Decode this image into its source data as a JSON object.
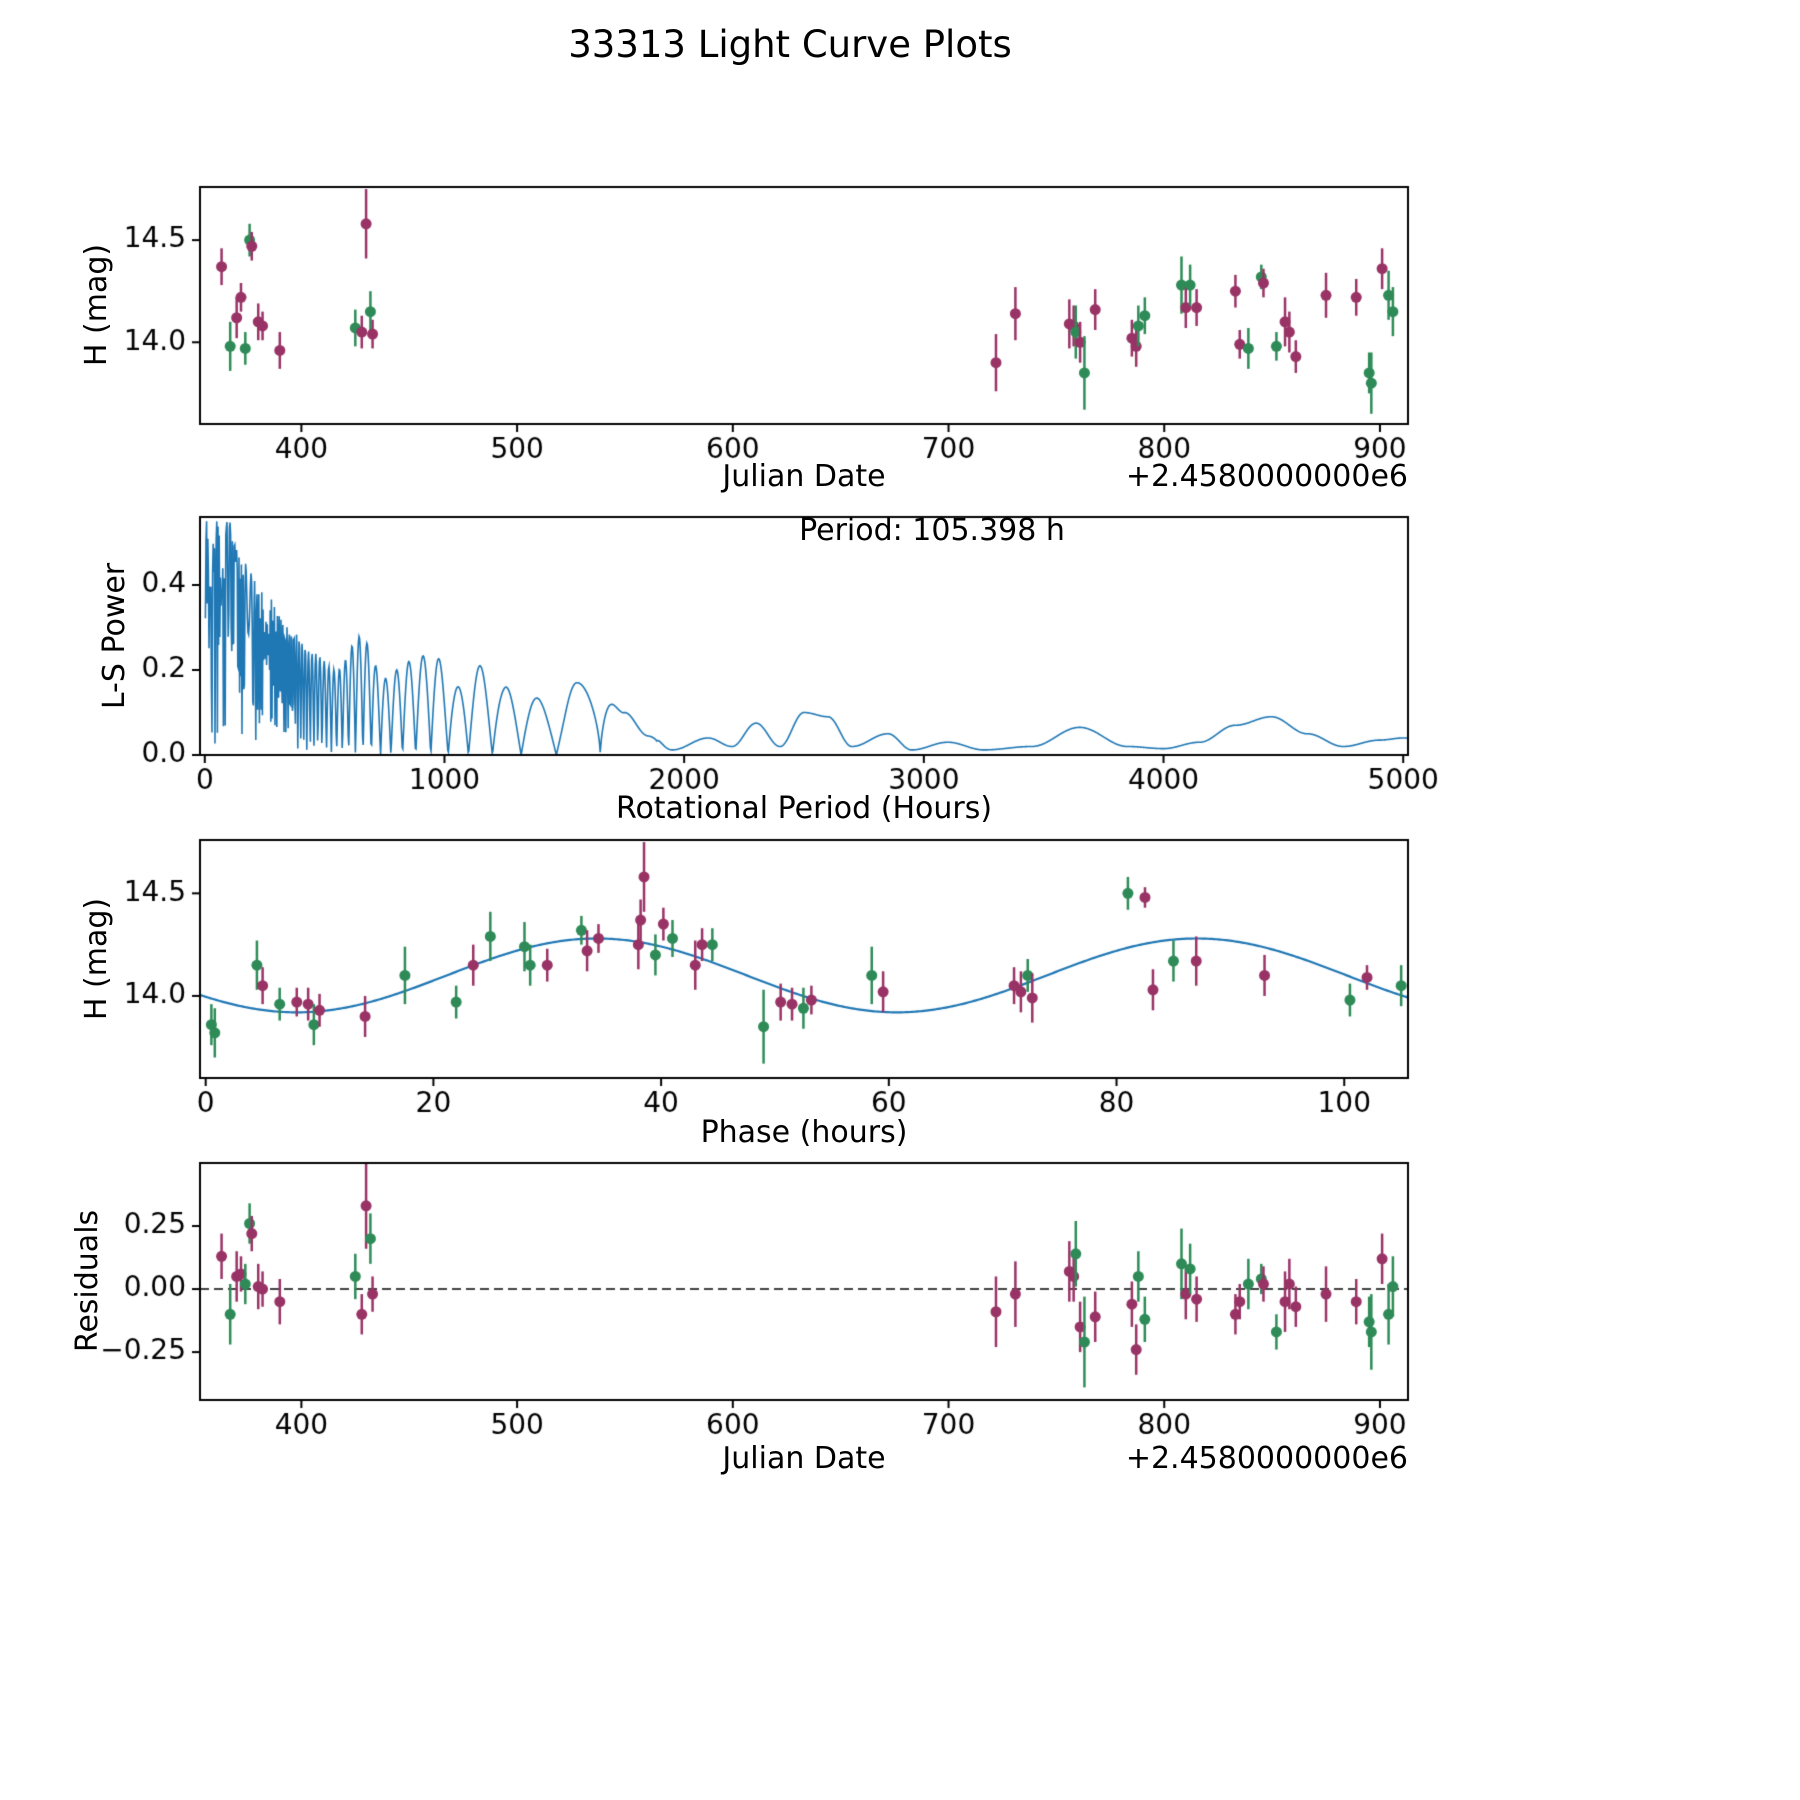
{
  "title": "33313 Light Curve Plots",
  "colors": {
    "p": "#993366",
    "g": "#2e8b57",
    "line": "#1f77b4",
    "axis": "#000000"
  },
  "chart_data": [
    {
      "type": "scatter",
      "xlabel": "Julian Date",
      "ylabel": "H (mag)",
      "x_offset_label": "+2.4580000000e6",
      "xlim": [
        353,
        913
      ],
      "ylim": [
        13.6,
        14.76
      ],
      "xticks": [
        400,
        500,
        600,
        700,
        800,
        900
      ],
      "xticklabels": [
        "400",
        "500",
        "600",
        "700",
        "800",
        "900"
      ],
      "yticks": [
        14.0,
        14.5
      ],
      "yticklabels": [
        "14.0",
        "14.5"
      ],
      "points": [
        [
          363,
          14.37,
          0.09,
          "p"
        ],
        [
          367,
          13.98,
          0.12,
          "g"
        ],
        [
          370,
          14.12,
          0.1,
          "p"
        ],
        [
          372,
          14.22,
          0.07,
          "p"
        ],
        [
          374,
          13.97,
          0.08,
          "g"
        ],
        [
          376,
          14.5,
          0.08,
          "g"
        ],
        [
          377,
          14.47,
          0.07,
          "p"
        ],
        [
          380,
          14.1,
          0.09,
          "p"
        ],
        [
          382,
          14.08,
          0.07,
          "p"
        ],
        [
          390,
          13.96,
          0.09,
          "p"
        ],
        [
          425,
          14.07,
          0.09,
          "g"
        ],
        [
          428,
          14.05,
          0.08,
          "p"
        ],
        [
          430,
          14.58,
          0.17,
          "p"
        ],
        [
          432,
          14.15,
          0.1,
          "g"
        ],
        [
          433,
          14.04,
          0.07,
          "p"
        ],
        [
          722,
          13.9,
          0.14,
          "p"
        ],
        [
          731,
          14.14,
          0.13,
          "p"
        ],
        [
          756,
          14.09,
          0.12,
          "p"
        ],
        [
          758,
          14.08,
          0.1,
          "p"
        ],
        [
          759,
          14.05,
          0.13,
          "g"
        ],
        [
          761,
          14.0,
          0.1,
          "p"
        ],
        [
          763,
          13.85,
          0.18,
          "g"
        ],
        [
          768,
          14.16,
          0.1,
          "p"
        ],
        [
          785,
          14.02,
          0.09,
          "p"
        ],
        [
          787,
          13.98,
          0.1,
          "p"
        ],
        [
          788,
          14.08,
          0.1,
          "g"
        ],
        [
          791,
          14.13,
          0.09,
          "g"
        ],
        [
          808,
          14.28,
          0.14,
          "g"
        ],
        [
          810,
          14.17,
          0.1,
          "p"
        ],
        [
          812,
          14.28,
          0.1,
          "g"
        ],
        [
          815,
          14.17,
          0.09,
          "p"
        ],
        [
          833,
          14.25,
          0.08,
          "p"
        ],
        [
          835,
          13.99,
          0.07,
          "p"
        ],
        [
          839,
          13.97,
          0.1,
          "g"
        ],
        [
          845,
          14.32,
          0.06,
          "g"
        ],
        [
          846,
          14.29,
          0.07,
          "p"
        ],
        [
          852,
          13.98,
          0.07,
          "g"
        ],
        [
          856,
          14.1,
          0.12,
          "p"
        ],
        [
          858,
          14.05,
          0.1,
          "p"
        ],
        [
          861,
          13.93,
          0.08,
          "p"
        ],
        [
          875,
          14.23,
          0.11,
          "p"
        ],
        [
          889,
          14.22,
          0.09,
          "p"
        ],
        [
          895,
          13.85,
          0.1,
          "g"
        ],
        [
          896,
          13.8,
          0.15,
          "g"
        ],
        [
          901,
          14.36,
          0.1,
          "p"
        ],
        [
          904,
          14.23,
          0.12,
          "g"
        ],
        [
          906,
          14.15,
          0.12,
          "g"
        ]
      ]
    },
    {
      "type": "line",
      "xlabel": "Rotational Period (Hours)",
      "ylabel": "L-S Power",
      "annotation": "Period: 105.398 h",
      "xlim": [
        -20,
        5020
      ],
      "ylim": [
        0,
        0.56
      ],
      "xticks": [
        0,
        1000,
        2000,
        3000,
        4000,
        5000
      ],
      "xticklabels": [
        "0",
        "1000",
        "2000",
        "3000",
        "4000",
        "5000"
      ],
      "yticks": [
        0.0,
        0.2,
        0.4
      ],
      "yticklabels": [
        "0.0",
        "0.2",
        "0.4"
      ],
      "periodogram": {
        "baseline_hours": 13200,
        "blend_start": 1500,
        "blend_end": 1900,
        "max_power": 0.55,
        "envelope": [
          [
            0,
            0.55
          ],
          [
            100,
            0.55
          ],
          [
            150,
            0.46
          ],
          [
            250,
            0.38
          ],
          [
            350,
            0.3
          ],
          [
            450,
            0.24
          ],
          [
            550,
            0.2
          ],
          [
            650,
            0.28
          ],
          [
            750,
            0.18
          ],
          [
            850,
            0.22
          ],
          [
            950,
            0.24
          ],
          [
            1050,
            0.16
          ],
          [
            1150,
            0.21
          ],
          [
            1250,
            0.16
          ],
          [
            1350,
            0.14
          ],
          [
            1450,
            0.12
          ],
          [
            1550,
            0.17
          ],
          [
            1650,
            0.19
          ],
          [
            1750,
            0.1
          ],
          [
            1850,
            0.05
          ],
          [
            1950,
            0.012
          ],
          [
            2100,
            0.04
          ],
          [
            2200,
            0.02
          ],
          [
            2300,
            0.075
          ],
          [
            2400,
            0.02
          ],
          [
            2500,
            0.1
          ],
          [
            2600,
            0.09
          ],
          [
            2700,
            0.02
          ],
          [
            2850,
            0.05
          ],
          [
            2950,
            0.012
          ],
          [
            3100,
            0.03
          ],
          [
            3250,
            0.012
          ],
          [
            3450,
            0.02
          ],
          [
            3650,
            0.065
          ],
          [
            3850,
            0.02
          ],
          [
            4000,
            0.015
          ],
          [
            4150,
            0.03
          ],
          [
            4300,
            0.07
          ],
          [
            4450,
            0.09
          ],
          [
            4600,
            0.05
          ],
          [
            4750,
            0.02
          ],
          [
            4900,
            0.035
          ],
          [
            5000,
            0.04
          ]
        ]
      }
    },
    {
      "type": "scatter+line",
      "xlabel": "Phase (hours)",
      "ylabel": "H (mag)",
      "xlim": [
        -0.5,
        105.6
      ],
      "ylim": [
        13.6,
        14.76
      ],
      "xticks": [
        0,
        20,
        40,
        60,
        80,
        100
      ],
      "xticklabels": [
        "0",
        "20",
        "40",
        "60",
        "80",
        "100"
      ],
      "yticks": [
        14.0,
        14.5
      ],
      "yticklabels": [
        "14.0",
        "14.5"
      ],
      "fit": {
        "mean": 14.1,
        "amplitude": 0.18,
        "min_phase": 8.0,
        "half_period": 52.7,
        "period_hours": 105.398
      },
      "points": [
        [
          0.5,
          13.86,
          0.1,
          "g"
        ],
        [
          0.8,
          13.82,
          0.12,
          "g"
        ],
        [
          4.5,
          14.15,
          0.12,
          "g"
        ],
        [
          5.0,
          14.05,
          0.09,
          "p"
        ],
        [
          6.5,
          13.96,
          0.08,
          "g"
        ],
        [
          8.0,
          13.97,
          0.07,
          "p"
        ],
        [
          9.0,
          13.96,
          0.08,
          "p"
        ],
        [
          9.5,
          13.86,
          0.1,
          "g"
        ],
        [
          10.0,
          13.93,
          0.08,
          "p"
        ],
        [
          14.0,
          13.9,
          0.1,
          "p"
        ],
        [
          17.5,
          14.1,
          0.14,
          "g"
        ],
        [
          22.0,
          13.97,
          0.08,
          "g"
        ],
        [
          23.5,
          14.15,
          0.1,
          "p"
        ],
        [
          25.0,
          14.29,
          0.12,
          "g"
        ],
        [
          28.0,
          14.24,
          0.12,
          "g"
        ],
        [
          28.5,
          14.15,
          0.1,
          "g"
        ],
        [
          30.0,
          14.15,
          0.08,
          "p"
        ],
        [
          33.0,
          14.32,
          0.07,
          "g"
        ],
        [
          33.5,
          14.22,
          0.1,
          "p"
        ],
        [
          34.5,
          14.28,
          0.07,
          "p"
        ],
        [
          38.0,
          14.25,
          0.12,
          "p"
        ],
        [
          38.2,
          14.37,
          0.1,
          "p"
        ],
        [
          38.5,
          14.58,
          0.17,
          "p"
        ],
        [
          39.5,
          14.2,
          0.1,
          "g"
        ],
        [
          40.2,
          14.35,
          0.08,
          "p"
        ],
        [
          41.0,
          14.28,
          0.09,
          "g"
        ],
        [
          43.0,
          14.15,
          0.12,
          "p"
        ],
        [
          43.6,
          14.25,
          0.08,
          "p"
        ],
        [
          44.5,
          14.25,
          0.08,
          "g"
        ],
        [
          49.0,
          13.85,
          0.18,
          "g"
        ],
        [
          50.5,
          13.97,
          0.09,
          "p"
        ],
        [
          51.5,
          13.96,
          0.08,
          "p"
        ],
        [
          52.5,
          13.94,
          0.1,
          "g"
        ],
        [
          53.2,
          13.98,
          0.07,
          "p"
        ],
        [
          58.5,
          14.1,
          0.14,
          "g"
        ],
        [
          59.5,
          14.02,
          0.1,
          "p"
        ],
        [
          71.0,
          14.05,
          0.09,
          "p"
        ],
        [
          71.6,
          14.02,
          0.1,
          "p"
        ],
        [
          72.2,
          14.1,
          0.08,
          "g"
        ],
        [
          72.6,
          13.99,
          0.12,
          "p"
        ],
        [
          81.0,
          14.5,
          0.08,
          "g"
        ],
        [
          82.5,
          14.48,
          0.05,
          "p"
        ],
        [
          83.2,
          14.03,
          0.1,
          "p"
        ],
        [
          85.0,
          14.17,
          0.1,
          "g"
        ],
        [
          87.0,
          14.17,
          0.12,
          "p"
        ],
        [
          93.0,
          14.1,
          0.1,
          "p"
        ],
        [
          100.5,
          13.98,
          0.08,
          "g"
        ],
        [
          102.0,
          14.09,
          0.06,
          "p"
        ],
        [
          105.0,
          14.05,
          0.1,
          "g"
        ]
      ]
    },
    {
      "type": "scatter",
      "xlabel": "Julian Date",
      "ylabel": "Residuals",
      "x_offset_label": "+2.4580000000e6",
      "zero_line": true,
      "xlim": [
        353,
        913
      ],
      "ylim": [
        -0.44,
        0.5
      ],
      "xticks": [
        400,
        500,
        600,
        700,
        800,
        900
      ],
      "xticklabels": [
        "400",
        "500",
        "600",
        "700",
        "800",
        "900"
      ],
      "yticks": [
        -0.25,
        0.0,
        0.25
      ],
      "yticklabels": [
        "−0.25",
        "0.00",
        "0.25"
      ],
      "points": [
        [
          363,
          0.13,
          0.09,
          "p"
        ],
        [
          367,
          -0.1,
          0.12,
          "g"
        ],
        [
          370,
          0.05,
          0.1,
          "p"
        ],
        [
          372,
          0.06,
          0.07,
          "p"
        ],
        [
          374,
          0.02,
          0.08,
          "g"
        ],
        [
          376,
          0.26,
          0.08,
          "g"
        ],
        [
          377,
          0.22,
          0.07,
          "p"
        ],
        [
          380,
          0.01,
          0.09,
          "p"
        ],
        [
          382,
          0.0,
          0.07,
          "p"
        ],
        [
          390,
          -0.05,
          0.09,
          "p"
        ],
        [
          425,
          0.05,
          0.09,
          "g"
        ],
        [
          428,
          -0.1,
          0.08,
          "p"
        ],
        [
          430,
          0.33,
          0.17,
          "p"
        ],
        [
          432,
          0.2,
          0.1,
          "g"
        ],
        [
          433,
          -0.02,
          0.07,
          "p"
        ],
        [
          722,
          -0.09,
          0.14,
          "p"
        ],
        [
          731,
          -0.02,
          0.13,
          "p"
        ],
        [
          756,
          0.07,
          0.12,
          "p"
        ],
        [
          758,
          0.05,
          0.1,
          "p"
        ],
        [
          759,
          0.14,
          0.13,
          "g"
        ],
        [
          761,
          -0.15,
          0.1,
          "p"
        ],
        [
          763,
          -0.21,
          0.18,
          "g"
        ],
        [
          768,
          -0.11,
          0.1,
          "p"
        ],
        [
          785,
          -0.06,
          0.09,
          "p"
        ],
        [
          787,
          -0.24,
          0.1,
          "p"
        ],
        [
          788,
          0.05,
          0.1,
          "g"
        ],
        [
          791,
          -0.12,
          0.09,
          "g"
        ],
        [
          808,
          0.1,
          0.14,
          "g"
        ],
        [
          810,
          -0.02,
          0.1,
          "p"
        ],
        [
          812,
          0.08,
          0.1,
          "g"
        ],
        [
          815,
          -0.04,
          0.09,
          "p"
        ],
        [
          833,
          -0.1,
          0.08,
          "p"
        ],
        [
          835,
          -0.05,
          0.07,
          "p"
        ],
        [
          839,
          0.02,
          0.1,
          "g"
        ],
        [
          845,
          0.04,
          0.06,
          "g"
        ],
        [
          846,
          0.02,
          0.07,
          "p"
        ],
        [
          852,
          -0.17,
          0.07,
          "g"
        ],
        [
          856,
          -0.05,
          0.12,
          "p"
        ],
        [
          858,
          0.02,
          0.1,
          "p"
        ],
        [
          861,
          -0.07,
          0.08,
          "p"
        ],
        [
          875,
          -0.02,
          0.11,
          "p"
        ],
        [
          889,
          -0.05,
          0.09,
          "p"
        ],
        [
          895,
          -0.13,
          0.1,
          "g"
        ],
        [
          896,
          -0.17,
          0.15,
          "g"
        ],
        [
          901,
          0.12,
          0.1,
          "p"
        ],
        [
          904,
          -0.1,
          0.12,
          "g"
        ],
        [
          906,
          0.01,
          0.12,
          "g"
        ]
      ]
    }
  ]
}
